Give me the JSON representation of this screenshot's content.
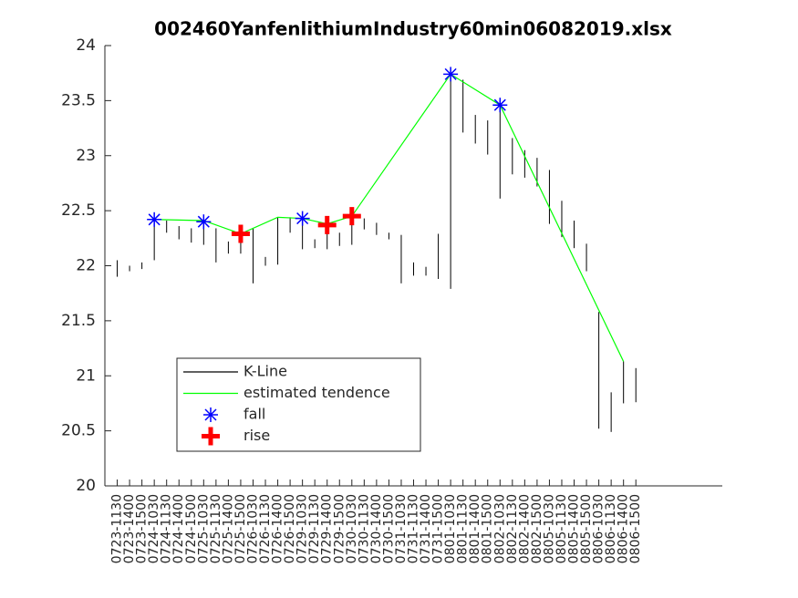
{
  "chart_data": {
    "type": "kline",
    "title": "002460YanfenlithiumIndustry60min06082019.xlsx",
    "xlim": [
      0,
      50
    ],
    "xticks": [
      {
        "value": 1,
        "label": "0723-1130"
      },
      {
        "value": 2,
        "label": "0723-1400"
      },
      {
        "value": 3,
        "label": "0723-1500"
      },
      {
        "value": 4,
        "label": "0724-1030"
      },
      {
        "value": 5,
        "label": "0724-1130"
      },
      {
        "value": 6,
        "label": "0724-1400"
      },
      {
        "value": 7,
        "label": "0724-1500"
      },
      {
        "value": 8,
        "label": "0725-1030"
      },
      {
        "value": 9,
        "label": "0725-1130"
      },
      {
        "value": 10,
        "label": "0725-1400"
      },
      {
        "value": 11,
        "label": "0725-1500"
      },
      {
        "value": 12,
        "label": "0726-1030"
      },
      {
        "value": 13,
        "label": "0726-1130"
      },
      {
        "value": 14,
        "label": "0726-1400"
      },
      {
        "value": 15,
        "label": "0726-1500"
      },
      {
        "value": 16,
        "label": "0729-1030"
      },
      {
        "value": 17,
        "label": "0729-1130"
      },
      {
        "value": 18,
        "label": "0729-1400"
      },
      {
        "value": 19,
        "label": "0729-1500"
      },
      {
        "value": 20,
        "label": "0730-1030"
      },
      {
        "value": 21,
        "label": "0730-1130"
      },
      {
        "value": 22,
        "label": "0730-1400"
      },
      {
        "value": 23,
        "label": "0730-1500"
      },
      {
        "value": 24,
        "label": "0731-1030"
      },
      {
        "value": 25,
        "label": "0731-1130"
      },
      {
        "value": 26,
        "label": "0731-1400"
      },
      {
        "value": 27,
        "label": "0731-1500"
      },
      {
        "value": 28,
        "label": "0801-1030"
      },
      {
        "value": 29,
        "label": "0801-1130"
      },
      {
        "value": 30,
        "label": "0801-1400"
      },
      {
        "value": 31,
        "label": "0801-1500"
      },
      {
        "value": 32,
        "label": "0802-1030"
      },
      {
        "value": 33,
        "label": "0802-1130"
      },
      {
        "value": 34,
        "label": "0802-1400"
      },
      {
        "value": 35,
        "label": "0802-1500"
      },
      {
        "value": 36,
        "label": "0805-1030"
      },
      {
        "value": 37,
        "label": "0805-1130"
      },
      {
        "value": 38,
        "label": "0805-1400"
      },
      {
        "value": 39,
        "label": "0805-1500"
      },
      {
        "value": 40,
        "label": "0806-1030"
      },
      {
        "value": 41,
        "label": "0806-1130"
      },
      {
        "value": 42,
        "label": "0806-1400"
      },
      {
        "value": 43,
        "label": "0806-1500"
      }
    ],
    "ylim": [
      20,
      24
    ],
    "yticks": [
      20,
      20.5,
      21,
      21.5,
      22,
      22.5,
      23,
      23.5,
      24
    ],
    "legend": "lower-left",
    "series": [
      {
        "name": "K-Line",
        "color": "#000000",
        "x": [
          1,
          2,
          3,
          4,
          5,
          6,
          7,
          8,
          9,
          10,
          11,
          12,
          13,
          14,
          15,
          16,
          17,
          18,
          19,
          20,
          21,
          22,
          23,
          24,
          25,
          26,
          27,
          28,
          29,
          30,
          31,
          32,
          33,
          34,
          35,
          36,
          37,
          38,
          39,
          40,
          41,
          42,
          43
        ],
        "high": [
          22.05,
          22.0,
          22.03,
          22.43,
          22.41,
          22.36,
          22.34,
          22.4,
          22.34,
          22.22,
          22.36,
          22.34,
          22.08,
          22.44,
          22.44,
          22.44,
          22.24,
          22.44,
          22.3,
          22.51,
          22.43,
          22.39,
          22.3,
          22.28,
          22.03,
          21.99,
          22.29,
          23.77,
          23.69,
          23.37,
          23.32,
          23.5,
          23.16,
          23.05,
          22.98,
          22.87,
          22.59,
          22.41,
          22.2,
          21.58,
          20.85,
          21.13,
          21.07
        ],
        "low": [
          21.9,
          21.95,
          21.97,
          22.05,
          22.3,
          22.24,
          22.21,
          22.19,
          22.03,
          22.11,
          22.11,
          21.84,
          22.0,
          22.01,
          22.3,
          22.15,
          22.16,
          22.15,
          22.18,
          22.19,
          22.33,
          22.28,
          22.24,
          21.84,
          21.91,
          21.91,
          21.88,
          21.79,
          23.21,
          23.11,
          23.01,
          22.61,
          22.83,
          22.8,
          22.72,
          22.38,
          22.26,
          22.16,
          21.95,
          20.52,
          20.49,
          20.75,
          20.76
        ]
      },
      {
        "name": "estimated tendence",
        "color": "#00ff00",
        "x": [
          4,
          8,
          11,
          14,
          16,
          18,
          20,
          28,
          32,
          42
        ],
        "values": [
          22.42,
          22.41,
          22.29,
          22.44,
          22.43,
          22.38,
          22.45,
          23.74,
          23.46,
          21.13
        ]
      },
      {
        "name": "fall",
        "color": "#0000ff",
        "marker": "asterisk",
        "x": [
          4,
          8,
          16,
          28,
          32
        ],
        "values": [
          22.42,
          22.4,
          22.43,
          23.74,
          23.46
        ]
      },
      {
        "name": "rise",
        "color": "#ff0000",
        "marker": "plus",
        "x": [
          11,
          18,
          20
        ],
        "values": [
          22.29,
          22.37,
          22.45
        ]
      }
    ]
  }
}
